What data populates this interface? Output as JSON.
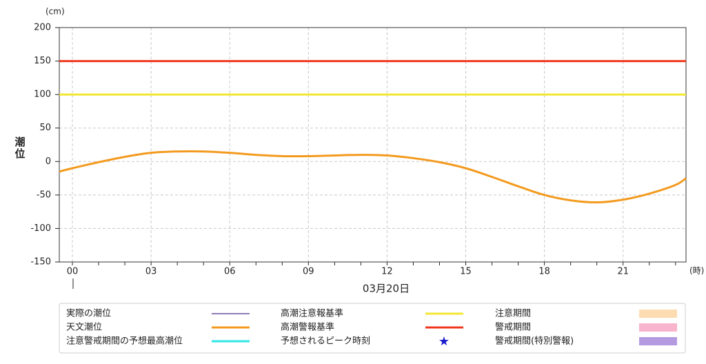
{
  "chart_data": {
    "type": "line",
    "y_unit": "(cm)",
    "y_label": "潮位",
    "x_unit": "(時)",
    "date_label": "03月20日",
    "xlim": [
      -0.5,
      23.4
    ],
    "ylim": [
      -150,
      200
    ],
    "yticks": [
      -150,
      -100,
      -50,
      0,
      50,
      100,
      150,
      200
    ],
    "xticks": [
      {
        "value": 0,
        "label": "00"
      },
      {
        "value": 3,
        "label": "03"
      },
      {
        "value": 6,
        "label": "06"
      },
      {
        "value": 9,
        "label": "09"
      },
      {
        "value": 12,
        "label": "12"
      },
      {
        "value": 15,
        "label": "15"
      },
      {
        "value": 18,
        "label": "18"
      },
      {
        "value": 21,
        "label": "21"
      }
    ],
    "xminorticks": [
      0,
      1,
      2,
      3,
      4,
      5,
      6,
      7,
      8,
      9,
      10,
      11,
      12,
      13,
      14,
      15,
      16,
      17,
      18,
      19,
      20,
      21,
      22,
      23
    ],
    "grid": true,
    "series": [
      {
        "color": "#f39a1e",
        "x": [
          -0.5,
          0,
          1,
          2,
          3,
          4,
          5,
          6,
          7,
          8,
          9,
          10,
          11,
          12,
          13,
          14,
          15,
          16,
          17,
          18,
          19,
          20,
          21,
          22,
          23,
          23.4
        ],
        "values": [
          -15,
          -10,
          -1,
          7,
          13,
          15,
          15,
          13,
          10,
          8,
          8,
          9,
          10,
          9,
          5,
          -1,
          -10,
          -23,
          -37,
          -50,
          -58,
          -61,
          -57,
          -48,
          -35,
          -25
        ]
      }
    ],
    "reference_lines": [
      {
        "value": 100,
        "color": "#f2e630"
      },
      {
        "value": 150,
        "color": "#f0361c"
      }
    ],
    "legend": [
      {
        "name": "実際の潮位",
        "color": "#4b2a8c",
        "symbol": "thin-line"
      },
      {
        "name": "天文潮位",
        "color": "#f39a1e",
        "symbol": "line"
      },
      {
        "name": "注意警戒期間の予想最高潮位",
        "color": "#2ee6e6",
        "symbol": "line"
      },
      {
        "name": "高潮注意報基準",
        "color": "#f2e630",
        "symbol": "line"
      },
      {
        "name": "高潮警報基準",
        "color": "#f0361c",
        "symbol": "line"
      },
      {
        "name": "予想されるピーク時刻",
        "color": "#1a1acc",
        "symbol": "star"
      },
      {
        "name": "注意期間",
        "color": "#fcdcb0",
        "symbol": "rect"
      },
      {
        "name": "警戒期間",
        "color": "#f8b4cc",
        "symbol": "rect"
      },
      {
        "name": "警戒期間(特別警報)",
        "color": "#b49ae0",
        "symbol": "rect"
      }
    ]
  }
}
